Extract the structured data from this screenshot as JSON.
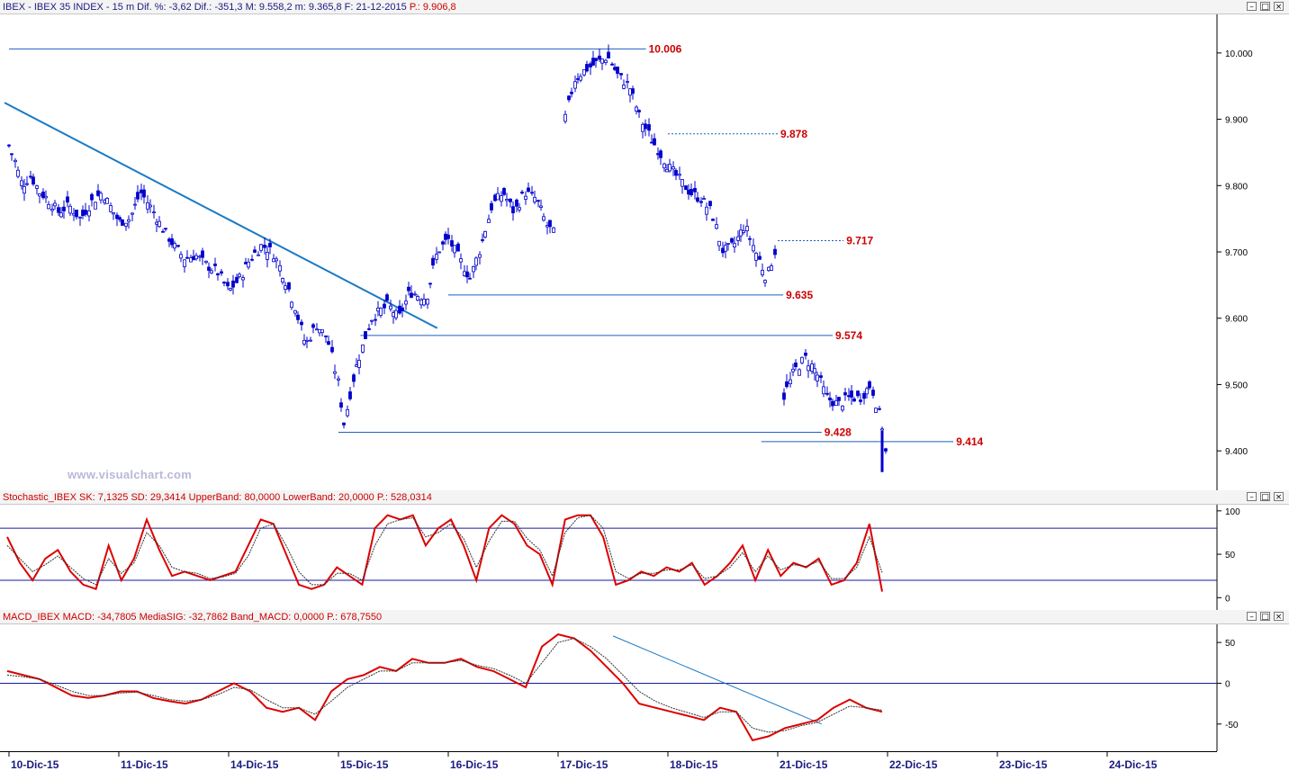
{
  "price_panel": {
    "title": "IBEX - IBEX 35 INDEX - 15 m  Dif. %: -3,62  Dif.: -351,3  M: 9.558,2  m: 9.365,8  F: 21-12-2015 ",
    "title_red": "P.: 9.906,8",
    "watermark": "www.visualchart.com"
  },
  "stoch_panel": {
    "title": "Stochastic_IBEX SK: 7,1325  SD: 29,3414  UpperBand: 80,0000  LowerBand: 20,0000 ",
    "title_red": "P.: 528,0314"
  },
  "macd_panel": {
    "title": "MACD_IBEX MACD: -34,7805  MediaSIG: -32,7862  Band_MACD: 0,0000 ",
    "title_red": "P.: 678,7550"
  },
  "window_buttons": {
    "minimize": "–",
    "restore": "□",
    "close": "×"
  },
  "colors": {
    "candle": "#0000cc",
    "level_line": "#1f5fbf",
    "trend_line": "#1a7ac4",
    "label_red": "#cc0000",
    "sk": "#dd0000",
    "sd": "#333333",
    "band": "#1a1a9c"
  },
  "chart_data": [
    {
      "type": "candlestick",
      "name": "price",
      "ylim": [
        9350,
        10050
      ],
      "yticks": [
        "10.000",
        "9.900",
        "9.800",
        "9.700",
        "9.600",
        "9.500",
        "9.400"
      ],
      "yticks_values": [
        10000,
        9900,
        9800,
        9700,
        9600,
        9500,
        9400
      ],
      "x_categories": [
        "10-Dic-15",
        "11-Dic-15",
        "14-Dic-15",
        "15-Dic-15",
        "16-Dic-15",
        "17-Dic-15",
        "18-Dic-15",
        "21-Dic-15",
        "22-Dic-15",
        "23-Dic-15",
        "24-Dic-15"
      ],
      "close_path": [
        [
          0,
          9860
        ],
        [
          0.05,
          9840
        ],
        [
          0.12,
          9800
        ],
        [
          0.2,
          9815
        ],
        [
          0.28,
          9790
        ],
        [
          0.35,
          9780
        ],
        [
          0.45,
          9760
        ],
        [
          0.55,
          9770
        ],
        [
          0.65,
          9750
        ],
        [
          0.75,
          9775
        ],
        [
          0.85,
          9790
        ],
        [
          0.95,
          9760
        ],
        [
          1.0,
          9745
        ],
        [
          1.1,
          9750
        ],
        [
          1.2,
          9790
        ],
        [
          1.3,
          9765
        ],
        [
          1.4,
          9735
        ],
        [
          1.5,
          9710
        ],
        [
          1.6,
          9690
        ],
        [
          1.7,
          9695
        ],
        [
          1.8,
          9680
        ],
        [
          1.9,
          9670
        ],
        [
          2.0,
          9640
        ],
        [
          2.1,
          9660
        ],
        [
          2.2,
          9690
        ],
        [
          2.3,
          9710
        ],
        [
          2.4,
          9700
        ],
        [
          2.5,
          9665
        ],
        [
          2.6,
          9620
        ],
        [
          2.7,
          9560
        ],
        [
          2.8,
          9590
        ],
        [
          2.9,
          9570
        ],
        [
          3.0,
          9500
        ],
        [
          3.05,
          9440
        ],
        [
          3.15,
          9520
        ],
        [
          3.3,
          9600
        ],
        [
          3.45,
          9620
        ],
        [
          3.55,
          9600
        ],
        [
          3.65,
          9640
        ],
        [
          3.8,
          9630
        ],
        [
          3.9,
          9700
        ],
        [
          4.0,
          9720
        ],
        [
          4.1,
          9690
        ],
        [
          4.2,
          9660
        ],
        [
          4.3,
          9710
        ],
        [
          4.4,
          9770
        ],
        [
          4.5,
          9790
        ],
        [
          4.6,
          9760
        ],
        [
          4.7,
          9790
        ],
        [
          4.8,
          9780
        ],
        [
          4.9,
          9740
        ],
        [
          5.0,
          9720
        ],
        [
          5.05,
          9890
        ],
        [
          5.15,
          9960
        ],
        [
          5.25,
          9975
        ],
        [
          5.35,
          9985
        ],
        [
          5.45,
          9995
        ],
        [
          5.55,
          9965
        ],
        [
          5.65,
          9950
        ],
        [
          5.75,
          9900
        ],
        [
          5.85,
          9870
        ],
        [
          6.0,
          9830
        ],
        [
          6.1,
          9810
        ],
        [
          6.2,
          9790
        ],
        [
          6.3,
          9780
        ],
        [
          6.4,
          9760
        ],
        [
          6.5,
          9700
        ],
        [
          6.6,
          9710
        ],
        [
          6.7,
          9740
        ],
        [
          6.8,
          9700
        ],
        [
          6.9,
          9660
        ],
        [
          7.0,
          9717
        ],
        [
          7.05,
          9480
        ],
        [
          7.15,
          9520
        ],
        [
          7.25,
          9540
        ],
        [
          7.35,
          9520
        ],
        [
          7.45,
          9480
        ],
        [
          7.55,
          9470
        ],
        [
          7.65,
          9480
        ],
        [
          7.75,
          9480
        ],
        [
          7.85,
          9500
        ],
        [
          7.95,
          9440
        ],
        [
          8.0,
          9370
        ]
      ],
      "levels": [
        {
          "label": "10.006",
          "value": 10006,
          "x_from": 0,
          "x_to": 5.8
        },
        {
          "label": "9.878",
          "value": 9878,
          "x_from": 6.0,
          "x_to": 7.0,
          "dashed": true
        },
        {
          "label": "9.717",
          "value": 9717,
          "x_from": 7.0,
          "x_to": 7.6,
          "dashed": true
        },
        {
          "label": "9.635",
          "value": 9635,
          "x_from": 4.0,
          "x_to": 7.05
        },
        {
          "label": "9.574",
          "value": 9574,
          "x_from": 3.2,
          "x_to": 7.5
        },
        {
          "label": "9.428",
          "value": 9428,
          "x_from": 3.0,
          "x_to": 7.4
        },
        {
          "label": "9.414",
          "value": 9414,
          "x_from": 6.85,
          "x_to": 8.6
        }
      ],
      "trendline": [
        [
          0,
          9925
        ],
        [
          3.9,
          9585
        ]
      ]
    },
    {
      "type": "line",
      "name": "stochastic",
      "ylim": [
        -10,
        105
      ],
      "yticks": [
        "100",
        "50",
        "0"
      ],
      "yticks_values": [
        100,
        50,
        0
      ],
      "bands": [
        80,
        20
      ],
      "series": [
        {
          "name": "SK",
          "values": [
            70,
            40,
            20,
            45,
            55,
            30,
            15,
            10,
            60,
            20,
            45,
            90,
            55,
            25,
            30,
            25,
            20,
            25,
            30,
            60,
            90,
            85,
            50,
            15,
            10,
            15,
            35,
            25,
            15,
            80,
            95,
            90,
            95,
            60,
            80,
            90,
            60,
            20,
            80,
            95,
            85,
            60,
            50,
            15,
            90,
            95,
            95,
            70,
            15,
            20,
            30,
            25,
            35,
            30,
            40,
            15,
            25,
            40,
            60,
            20,
            55,
            25,
            40,
            35,
            45,
            15,
            20,
            40,
            85,
            7
          ]
        },
        {
          "name": "SD",
          "values": [
            60,
            45,
            30,
            38,
            48,
            35,
            22,
            15,
            45,
            28,
            40,
            75,
            60,
            35,
            30,
            28,
            22,
            24,
            28,
            48,
            80,
            85,
            60,
            30,
            15,
            15,
            28,
            28,
            20,
            60,
            85,
            90,
            92,
            70,
            75,
            85,
            68,
            35,
            65,
            88,
            88,
            68,
            55,
            25,
            75,
            92,
            95,
            80,
            30,
            22,
            28,
            28,
            32,
            32,
            38,
            22,
            25,
            35,
            52,
            30,
            48,
            32,
            38,
            36,
            42,
            22,
            22,
            35,
            70,
            29
          ]
        }
      ]
    },
    {
      "type": "line",
      "name": "macd",
      "ylim": [
        -80,
        70
      ],
      "yticks": [
        "50",
        "0",
        "-50"
      ],
      "yticks_values": [
        50,
        0,
        -50
      ],
      "series": [
        {
          "name": "MACD",
          "values": [
            15,
            10,
            5,
            -5,
            -15,
            -18,
            -15,
            -10,
            -10,
            -18,
            -22,
            -25,
            -20,
            -10,
            0,
            -10,
            -30,
            -35,
            -30,
            -45,
            -10,
            5,
            10,
            20,
            15,
            30,
            25,
            25,
            30,
            20,
            15,
            5,
            -5,
            45,
            60,
            55,
            40,
            20,
            0,
            -25,
            -30,
            -35,
            -40,
            -45,
            -30,
            -35,
            -70,
            -65,
            -55,
            -50,
            -45,
            -30,
            -20,
            -30,
            -35
          ]
        },
        {
          "name": "MediaSIG",
          "values": [
            10,
            8,
            5,
            -2,
            -10,
            -15,
            -15,
            -12,
            -11,
            -15,
            -20,
            -22,
            -20,
            -14,
            -5,
            -8,
            -20,
            -30,
            -30,
            -38,
            -22,
            -5,
            5,
            15,
            15,
            25,
            25,
            25,
            28,
            22,
            18,
            10,
            0,
            25,
            50,
            55,
            45,
            30,
            10,
            -10,
            -22,
            -30,
            -36,
            -42,
            -35,
            -35,
            -55,
            -60,
            -58,
            -52,
            -48,
            -38,
            -28,
            -30,
            -33
          ]
        }
      ],
      "trendline": [
        [
          5.5,
          58
        ],
        [
          7.4,
          -50
        ]
      ]
    }
  ]
}
